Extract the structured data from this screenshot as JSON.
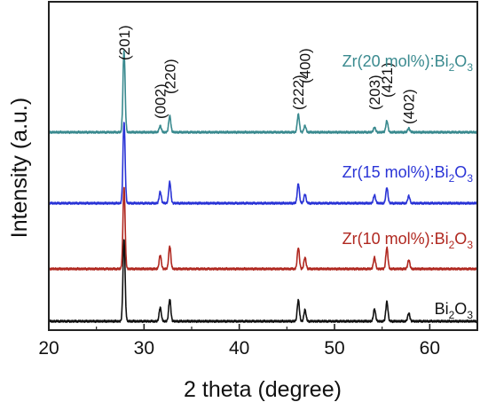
{
  "chart_data": {
    "type": "line",
    "xlabel": "2 theta (degree)",
    "ylabel": "Intensity (a.u.)",
    "xlim": [
      20,
      65
    ],
    "xticks": [
      20,
      30,
      40,
      50,
      60
    ],
    "y_ticks_shown": false,
    "grid": false,
    "peak_labels": [
      {
        "label": "(201)",
        "x": 27.9
      },
      {
        "label": "(002)",
        "x": 31.7
      },
      {
        "label": "(220)",
        "x": 32.7
      },
      {
        "label": "(222)",
        "x": 46.2
      },
      {
        "label": "(400)",
        "x": 46.9
      },
      {
        "label": "(203)",
        "x": 54.2
      },
      {
        "label": "(421)",
        "x": 55.5
      },
      {
        "label": "(402)",
        "x": 57.8
      }
    ],
    "series": [
      {
        "name_prefix": "Zr(20 mol%):Bi",
        "name_sub": "2",
        "name_mid": "O",
        "name_sub2": "3",
        "color": "#3a8a8f",
        "offset": 3,
        "peaks": [
          {
            "x": 27.9,
            "h": 1.0
          },
          {
            "x": 31.7,
            "h": 0.08
          },
          {
            "x": 32.7,
            "h": 0.2
          },
          {
            "x": 46.2,
            "h": 0.22
          },
          {
            "x": 46.9,
            "h": 0.08
          },
          {
            "x": 54.2,
            "h": 0.06
          },
          {
            "x": 55.5,
            "h": 0.14
          },
          {
            "x": 57.8,
            "h": 0.05
          }
        ]
      },
      {
        "name_prefix": "Zr(15 mol%):Bi",
        "name_sub": "2",
        "name_mid": "O",
        "name_sub2": "3",
        "color": "#2a34d6",
        "offset": 2,
        "peaks": [
          {
            "x": 27.9,
            "h": 1.0
          },
          {
            "x": 31.7,
            "h": 0.14
          },
          {
            "x": 32.7,
            "h": 0.26
          },
          {
            "x": 46.2,
            "h": 0.24
          },
          {
            "x": 46.9,
            "h": 0.11
          },
          {
            "x": 54.2,
            "h": 0.1
          },
          {
            "x": 55.5,
            "h": 0.19
          },
          {
            "x": 57.8,
            "h": 0.09
          }
        ]
      },
      {
        "name_prefix": "Zr(10 mol%):Bi",
        "name_sub": "2",
        "name_mid": "O",
        "name_sub2": "3",
        "color": "#b02820",
        "offset": 1,
        "peaks": [
          {
            "x": 27.9,
            "h": 1.0
          },
          {
            "x": 31.7,
            "h": 0.17
          },
          {
            "x": 32.7,
            "h": 0.28
          },
          {
            "x": 46.2,
            "h": 0.26
          },
          {
            "x": 46.9,
            "h": 0.14
          },
          {
            "x": 54.2,
            "h": 0.14
          },
          {
            "x": 55.5,
            "h": 0.26
          },
          {
            "x": 57.8,
            "h": 0.11
          }
        ]
      },
      {
        "name_prefix": "Bi",
        "name_sub": "2",
        "name_mid": "O",
        "name_sub2": "3",
        "color": "#111111",
        "offset": 0,
        "peaks": [
          {
            "x": 27.9,
            "h": 1.0
          },
          {
            "x": 31.7,
            "h": 0.17
          },
          {
            "x": 32.7,
            "h": 0.27
          },
          {
            "x": 46.2,
            "h": 0.26
          },
          {
            "x": 46.9,
            "h": 0.14
          },
          {
            "x": 54.2,
            "h": 0.15
          },
          {
            "x": 55.5,
            "h": 0.24
          },
          {
            "x": 57.8,
            "h": 0.1
          }
        ]
      }
    ]
  }
}
